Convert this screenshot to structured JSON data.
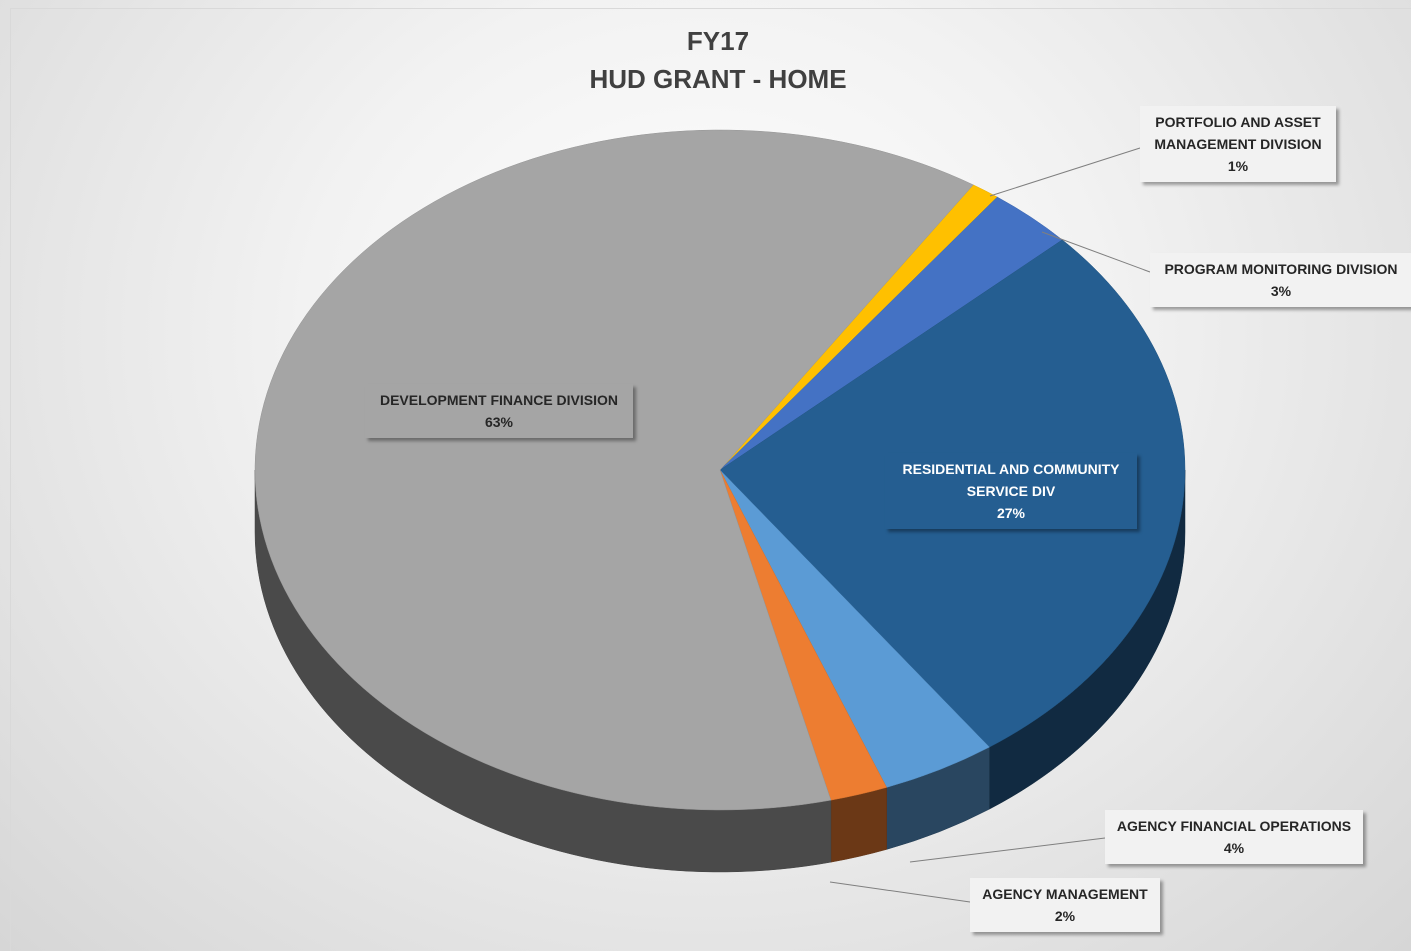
{
  "chart_data": {
    "type": "pie3d",
    "title": "FY17",
    "subtitle": "HUD GRANT - HOME",
    "categories": [
      "PORTFOLIO AND ASSET MANAGEMENT DIVISION",
      "PROGRAM MONITORING DIVISION",
      "RESIDENTIAL AND COMMUNITY SERVICE DIV",
      "AGENCY FINANCIAL OPERATIONS",
      "AGENCY MANAGEMENT",
      "DEVELOPMENT FINANCE DIVISION"
    ],
    "values": [
      1,
      3,
      27,
      4,
      2,
      63
    ],
    "value_labels": [
      "1%",
      "3%",
      "27%",
      "4%",
      "2%",
      "63%"
    ],
    "colors": [
      "#ffc000",
      "#4472c4",
      "#255e91",
      "#5b9bd5",
      "#ed7d31",
      "#a5a5a5"
    ]
  }
}
